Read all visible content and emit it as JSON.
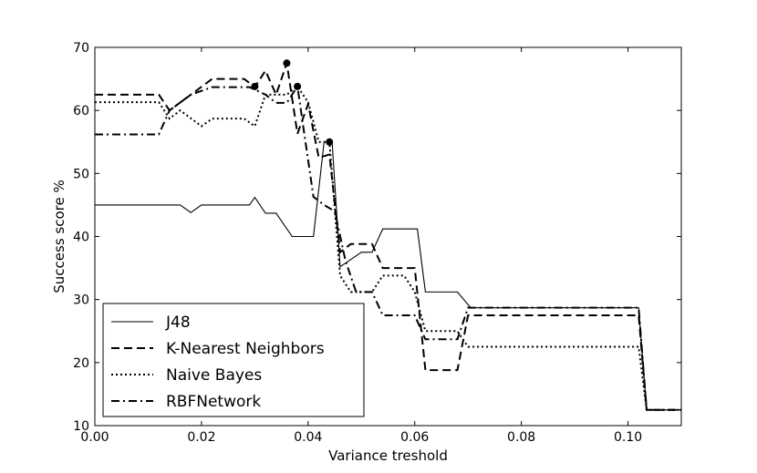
{
  "chart_data": {
    "type": "line",
    "title": "",
    "xlabel": "Variance treshold",
    "ylabel": "Success score %",
    "xlim": [
      0.0,
      0.11
    ],
    "ylim": [
      10,
      70
    ],
    "xticks": [
      "0.00",
      "0.02",
      "0.04",
      "0.06",
      "0.08",
      "0.10"
    ],
    "yticks": [
      "10",
      "20",
      "30",
      "40",
      "50",
      "60",
      "70"
    ],
    "legend_position": "lower-left",
    "series": [
      {
        "name": "J48",
        "style": "solid",
        "x": [
          0.0,
          0.016,
          0.018,
          0.02,
          0.029,
          0.03,
          0.032,
          0.034,
          0.037,
          0.041,
          0.043,
          0.0445,
          0.046,
          0.05,
          0.052,
          0.054,
          0.056,
          0.0605,
          0.062,
          0.068,
          0.0705,
          0.102,
          0.1035,
          0.11
        ],
        "y": [
          45,
          45,
          43.8,
          45,
          45,
          46.2,
          43.7,
          43.7,
          40,
          40,
          55,
          55,
          35.2,
          37.5,
          37.5,
          41.2,
          41.2,
          41.2,
          31.2,
          31.2,
          28.7,
          28.7,
          12.5,
          12.5
        ]
      },
      {
        "name": "K-Nearest Neighbors",
        "style": "dashed",
        "x": [
          0.0,
          0.007,
          0.012,
          0.014,
          0.018,
          0.022,
          0.028,
          0.03,
          0.032,
          0.034,
          0.036,
          0.038,
          0.04,
          0.042,
          0.044,
          0.046,
          0.048,
          0.052,
          0.054,
          0.058,
          0.06,
          0.062,
          0.064,
          0.068,
          0.07,
          0.102,
          0.1035,
          0.11
        ],
        "y": [
          62.5,
          62.5,
          62.5,
          60,
          62.5,
          65,
          65,
          63.7,
          66.3,
          62.5,
          67.5,
          56.3,
          61,
          52.5,
          53,
          37.5,
          38.8,
          38.8,
          35,
          35,
          35,
          18.8,
          18.8,
          18.8,
          27.5,
          27.5,
          12.5,
          12.5
        ]
      },
      {
        "name": "Naive Bayes",
        "style": "dotted",
        "x": [
          0.0,
          0.012,
          0.014,
          0.016,
          0.02,
          0.022,
          0.024,
          0.028,
          0.03,
          0.032,
          0.034,
          0.036,
          0.038,
          0.04,
          0.042,
          0.044,
          0.046,
          0.048,
          0.05,
          0.052,
          0.054,
          0.058,
          0.06,
          0.062,
          0.064,
          0.068,
          0.07,
          0.102,
          0.1035,
          0.11
        ],
        "y": [
          61.3,
          61.3,
          58.7,
          60,
          57.5,
          58.7,
          58.7,
          58.7,
          57.5,
          62.5,
          62.5,
          62.5,
          63.8,
          61.3,
          55,
          55,
          33.8,
          31.2,
          31.2,
          31.2,
          33.8,
          33.8,
          31.2,
          25,
          25,
          25,
          22.5,
          22.5,
          12.5,
          12.5
        ]
      },
      {
        "name": "RBFNetwork",
        "style": "dashdot",
        "x": [
          0.0,
          0.012,
          0.014,
          0.018,
          0.022,
          0.026,
          0.029,
          0.032,
          0.034,
          0.036,
          0.038,
          0.041,
          0.043,
          0.045,
          0.047,
          0.049,
          0.052,
          0.054,
          0.058,
          0.06,
          0.062,
          0.064,
          0.068,
          0.07,
          0.102,
          0.1035,
          0.11
        ],
        "y": [
          56.2,
          56.2,
          60,
          62.5,
          63.7,
          63.7,
          63.7,
          62.5,
          61.2,
          61.2,
          63.8,
          46.3,
          45,
          44,
          36.2,
          31.2,
          31.2,
          27.5,
          27.5,
          27.5,
          23.7,
          23.7,
          23.7,
          28.7,
          28.7,
          12.5,
          12.5
        ]
      }
    ],
    "markers": [
      {
        "x": 0.03,
        "y": 63.8
      },
      {
        "x": 0.036,
        "y": 67.5
      },
      {
        "x": 0.038,
        "y": 63.8
      },
      {
        "x": 0.044,
        "y": 55
      }
    ]
  }
}
